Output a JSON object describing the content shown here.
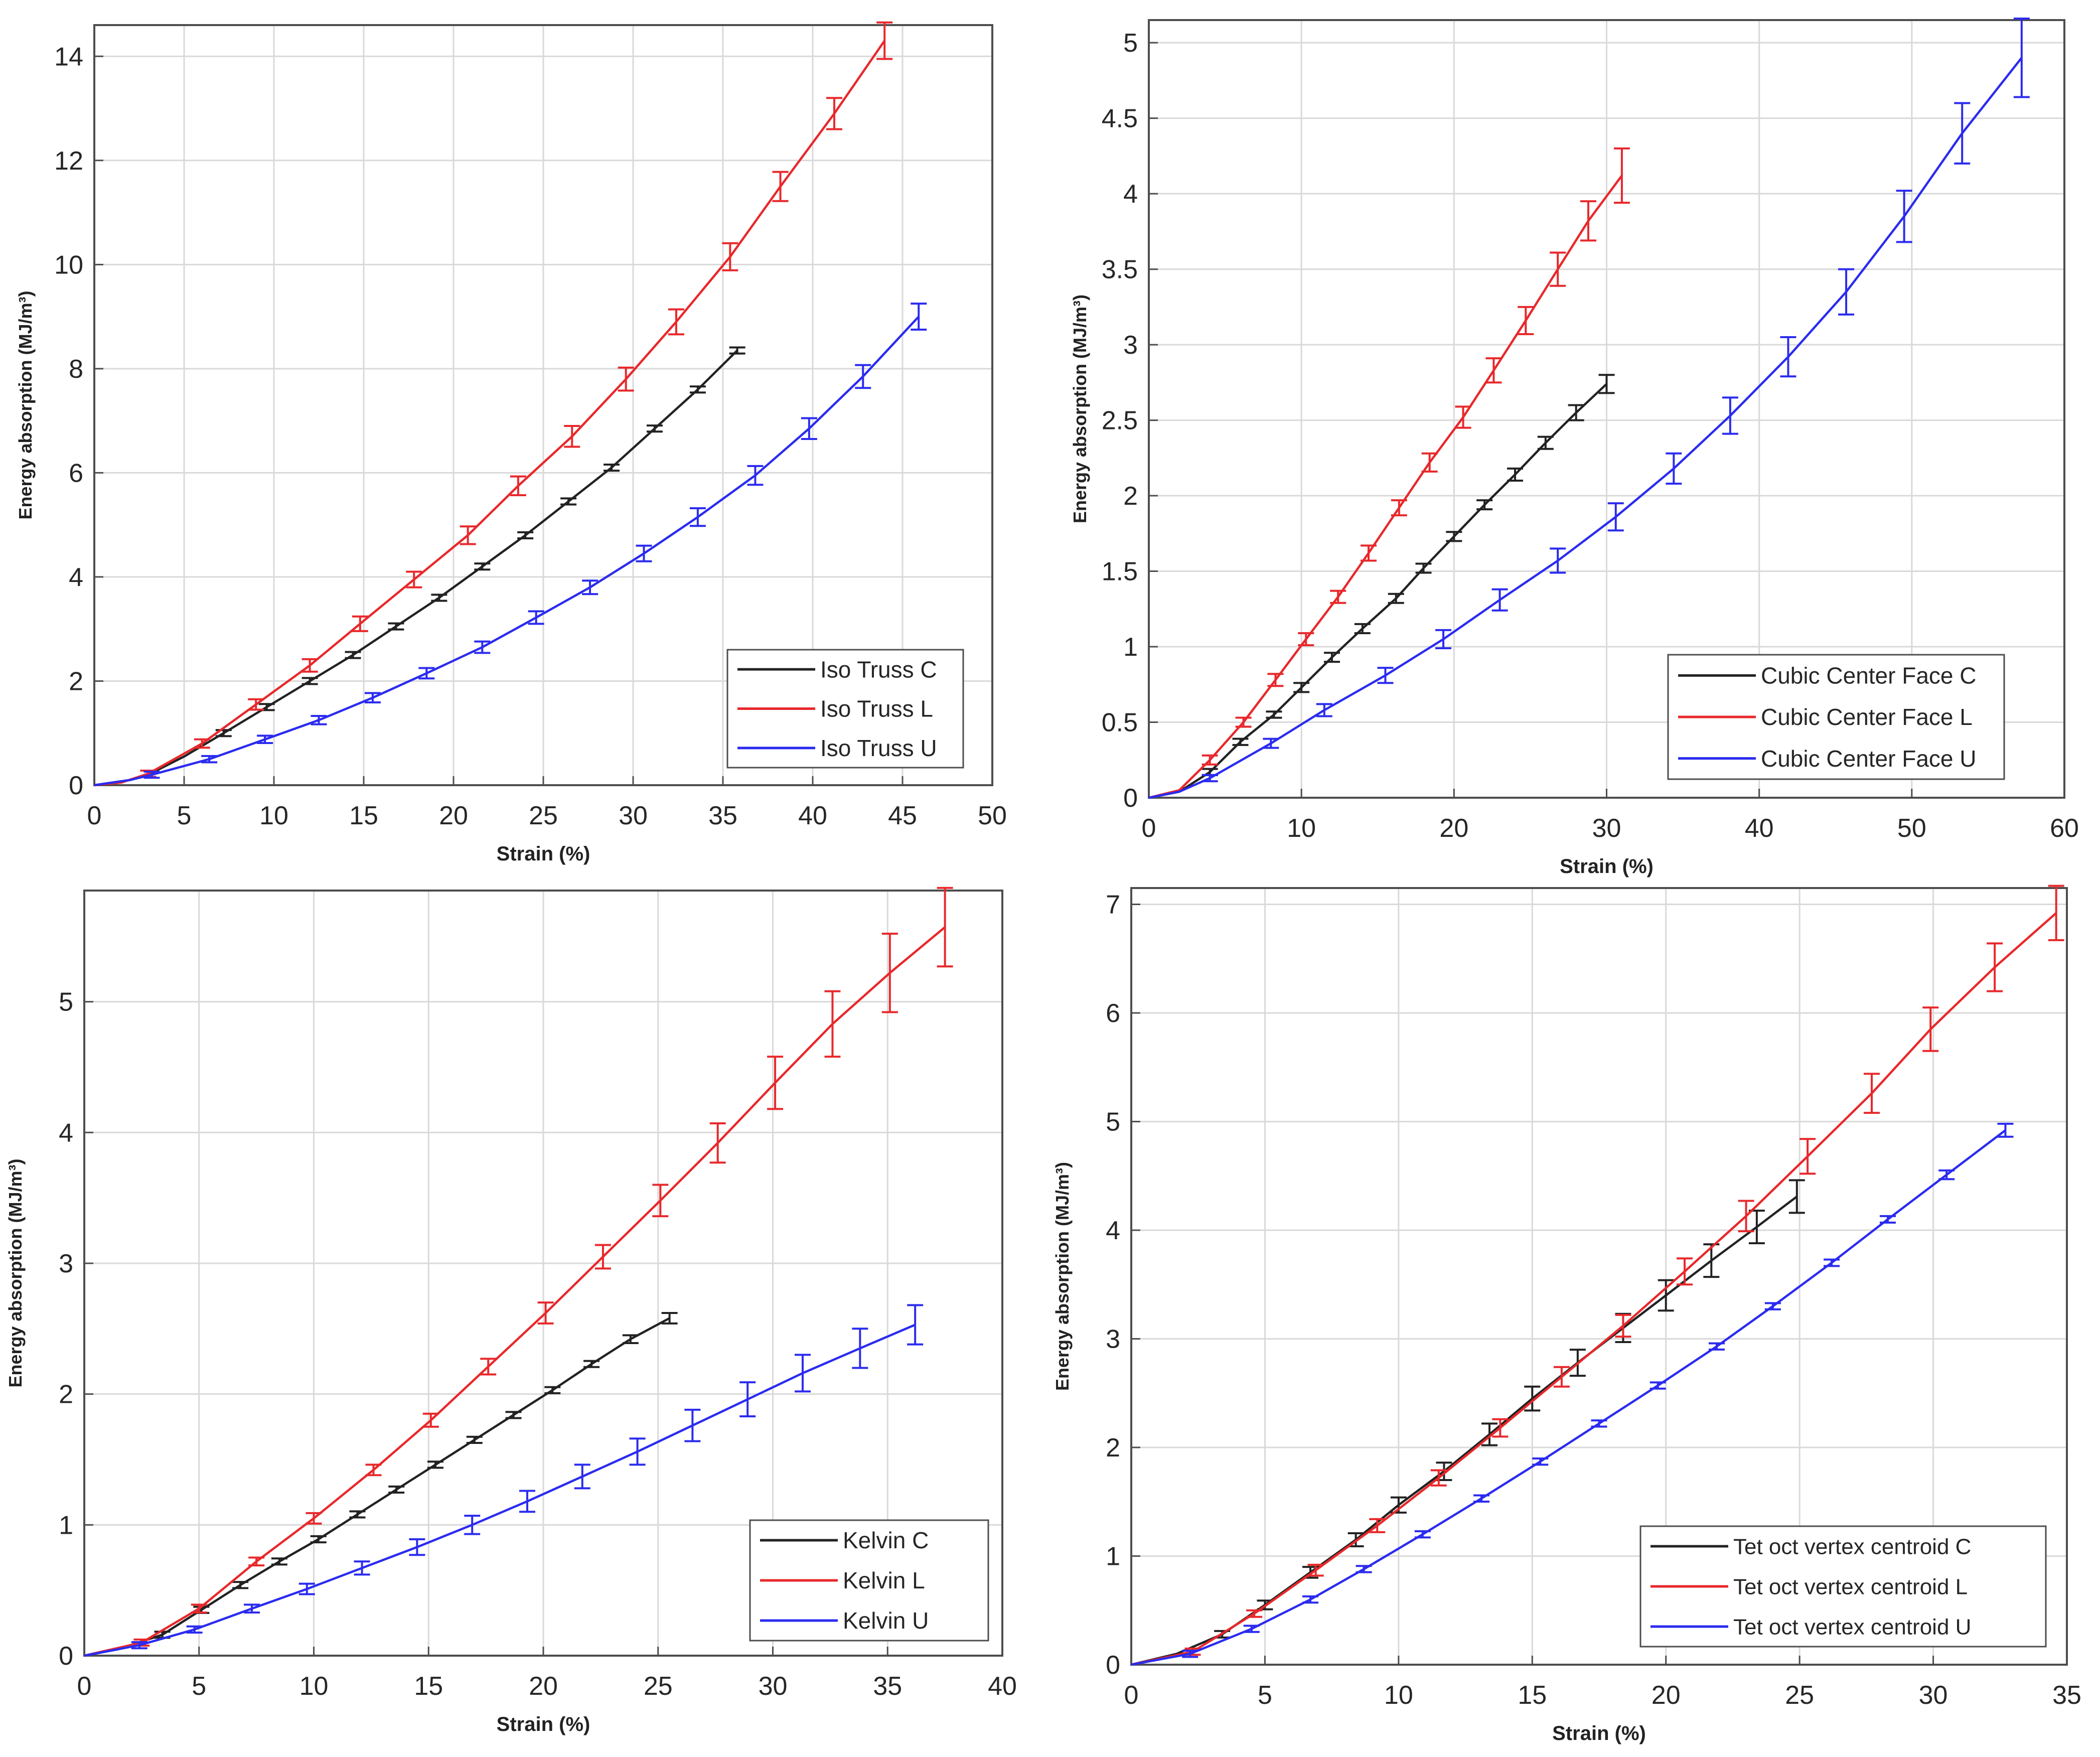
{
  "colors": {
    "C": "#222222",
    "L": "#e8282b",
    "U": "#2b2bf0",
    "grid": "#d9d9d9",
    "axis": "#4d4d4d"
  },
  "chart_data": [
    {
      "id": "iso-truss",
      "type": "line",
      "xlabel": "Strain (%)",
      "ylabel": "Energy absorption (MJ/m³)",
      "xlim": [
        0,
        50
      ],
      "ylim": [
        0,
        14.6
      ],
      "xticks": [
        0,
        5,
        10,
        15,
        20,
        25,
        30,
        35,
        40,
        45,
        50
      ],
      "yticks": [
        0,
        2,
        4,
        6,
        8,
        10,
        12,
        14
      ],
      "legend_position": "bottom-right",
      "series": [
        {
          "name": "Iso Truss C",
          "key": "C",
          "x": [
            0,
            2,
            3,
            5,
            7.2,
            9.6,
            12,
            14.4,
            16.8,
            19.2,
            21.6,
            24,
            26.4,
            28.8,
            31.2,
            33.6,
            35.8
          ],
          "y": [
            0,
            0.1,
            0.2,
            0.55,
            1,
            1.5,
            2,
            2.5,
            3.05,
            3.6,
            4.2,
            4.8,
            5.45,
            6.1,
            6.85,
            7.6,
            8.35
          ],
          "err": [
            0,
            0.03,
            0.04,
            0.05,
            0.05,
            0.05,
            0.05,
            0.05,
            0.05,
            0.05,
            0.05,
            0.05,
            0.05,
            0.05,
            0.05,
            0.05,
            0.05
          ],
          "marker_every": 1,
          "marker_start": 4
        },
        {
          "name": "Iso Truss L",
          "key": "L",
          "x": [
            0,
            1.5,
            3,
            6,
            9,
            12,
            14.8,
            17.8,
            20.8,
            23.6,
            26.6,
            29.6,
            32.4,
            35.4,
            38.2,
            41.2,
            44
          ],
          "y": [
            0,
            0.05,
            0.22,
            0.8,
            1.55,
            2.3,
            3.1,
            3.95,
            4.8,
            5.75,
            6.7,
            7.8,
            8.9,
            10.15,
            11.5,
            12.9,
            14.3
          ],
          "err": [
            0,
            0.05,
            0.06,
            0.08,
            0.1,
            0.12,
            0.14,
            0.15,
            0.17,
            0.18,
            0.2,
            0.22,
            0.24,
            0.26,
            0.28,
            0.3,
            0.35
          ],
          "marker_every": 1,
          "marker_start": 2
        },
        {
          "name": "Iso Truss U",
          "key": "U",
          "x": [
            0,
            2,
            3.2,
            6.4,
            9.5,
            12.5,
            15.5,
            18.5,
            21.6,
            24.6,
            27.6,
            30.6,
            33.6,
            36.8,
            39.8,
            42.8,
            45.9
          ],
          "y": [
            0,
            0.1,
            0.2,
            0.5,
            0.88,
            1.25,
            1.68,
            2.15,
            2.65,
            3.22,
            3.8,
            4.45,
            5.15,
            5.95,
            6.85,
            7.85,
            9
          ],
          "err": [
            0,
            0.03,
            0.04,
            0.06,
            0.07,
            0.08,
            0.09,
            0.1,
            0.11,
            0.12,
            0.13,
            0.15,
            0.17,
            0.18,
            0.2,
            0.22,
            0.25
          ],
          "marker_every": 1,
          "marker_start": 2
        }
      ]
    },
    {
      "id": "cubic-center-face",
      "type": "line",
      "xlabel": "Strain (%)",
      "ylabel": "Energy absorption (MJ/m³)",
      "xlim": [
        0,
        60
      ],
      "ylim": [
        0,
        5.15
      ],
      "xticks": [
        0,
        10,
        20,
        30,
        40,
        50,
        60
      ],
      "yticks": [
        0,
        0.5,
        1,
        1.5,
        2,
        2.5,
        3,
        3.5,
        4,
        4.5,
        5
      ],
      "legend_position": "bottom-right",
      "series": [
        {
          "name": "Cubic Center Face C",
          "key": "C",
          "x": [
            0,
            2,
            4,
            6,
            8.2,
            10,
            12,
            14,
            16.2,
            18,
            20,
            22,
            24,
            26,
            28,
            30
          ],
          "y": [
            0,
            0.04,
            0.17,
            0.37,
            0.55,
            0.73,
            0.93,
            1.12,
            1.32,
            1.52,
            1.73,
            1.94,
            2.14,
            2.35,
            2.55,
            2.74
          ],
          "err": [
            0,
            0.02,
            0.02,
            0.02,
            0.02,
            0.03,
            0.03,
            0.03,
            0.03,
            0.03,
            0.03,
            0.03,
            0.04,
            0.04,
            0.05,
            0.06
          ],
          "marker_every": 1,
          "marker_start": 2
        },
        {
          "name": "Cubic Center Face L",
          "key": "L",
          "x": [
            0,
            2,
            4,
            6.2,
            8.3,
            10.3,
            12.4,
            14.4,
            16.4,
            18.4,
            20.6,
            22.6,
            24.7,
            26.8,
            28.8,
            31
          ],
          "y": [
            0,
            0.05,
            0.25,
            0.5,
            0.78,
            1.05,
            1.33,
            1.62,
            1.92,
            2.22,
            2.52,
            2.83,
            3.16,
            3.5,
            3.82,
            4.12
          ],
          "err": [
            0,
            0.02,
            0.03,
            0.03,
            0.04,
            0.04,
            0.04,
            0.05,
            0.05,
            0.06,
            0.07,
            0.08,
            0.09,
            0.11,
            0.13,
            0.18
          ],
          "marker_every": 1,
          "marker_start": 2
        },
        {
          "name": "Cubic Center Face U",
          "key": "U",
          "x": [
            0,
            2,
            4,
            8,
            11.5,
            15.5,
            19.3,
            23,
            26.8,
            30.6,
            34.4,
            38.1,
            41.9,
            45.7,
            49.5,
            53.3,
            57.2
          ],
          "y": [
            0,
            0.04,
            0.13,
            0.36,
            0.58,
            0.81,
            1.05,
            1.31,
            1.57,
            1.86,
            2.18,
            2.53,
            2.92,
            3.35,
            3.85,
            4.4,
            4.9
          ],
          "err": [
            0,
            0.02,
            0.02,
            0.03,
            0.04,
            0.05,
            0.06,
            0.07,
            0.08,
            0.09,
            0.1,
            0.12,
            0.13,
            0.15,
            0.17,
            0.2,
            0.26
          ],
          "marker_every": 1,
          "marker_start": 2
        }
      ]
    },
    {
      "id": "kelvin",
      "type": "line",
      "xlabel": "Strain (%)",
      "ylabel": "Energy absorption (MJ/m³)",
      "xlim": [
        0,
        40
      ],
      "ylim": [
        0,
        5.85
      ],
      "xticks": [
        0,
        5,
        10,
        15,
        20,
        25,
        30,
        35,
        40
      ],
      "yticks": [
        0,
        1,
        2,
        3,
        4,
        5
      ],
      "legend_position": "bottom-right",
      "series": [
        {
          "name": "Kelvin C",
          "key": "C",
          "x": [
            0,
            1.5,
            3.4,
            5.1,
            6.8,
            8.5,
            10.2,
            11.9,
            13.6,
            15.3,
            17,
            18.7,
            20.4,
            22.1,
            23.8,
            25.5
          ],
          "y": [
            0,
            0.05,
            0.16,
            0.35,
            0.54,
            0.72,
            0.89,
            1.08,
            1.27,
            1.46,
            1.65,
            1.84,
            2.03,
            2.23,
            2.42,
            2.58
          ],
          "err": [
            0,
            0.01,
            0.01,
            0.02,
            0.02,
            0.02,
            0.02,
            0.02,
            0.02,
            0.02,
            0.02,
            0.02,
            0.02,
            0.02,
            0.03,
            0.04
          ],
          "marker_every": 1,
          "marker_start": 2
        },
        {
          "name": "Kelvin L",
          "key": "L",
          "x": [
            0,
            2.5,
            5,
            7.5,
            10,
            12.6,
            15.1,
            17.6,
            20.1,
            22.6,
            25.1,
            27.6,
            30.1,
            32.6,
            35.1,
            37.5
          ],
          "y": [
            0,
            0.1,
            0.36,
            0.72,
            1.05,
            1.42,
            1.8,
            2.21,
            2.62,
            3.05,
            3.48,
            3.92,
            4.38,
            4.83,
            5.22,
            5.57
          ],
          "err": [
            0,
            0.02,
            0.03,
            0.03,
            0.04,
            0.04,
            0.05,
            0.06,
            0.08,
            0.09,
            0.12,
            0.15,
            0.2,
            0.25,
            0.3,
            0.3
          ],
          "marker_every": 1,
          "marker_start": 1
        },
        {
          "name": "Kelvin U",
          "key": "U",
          "x": [
            0,
            2.4,
            4.8,
            7.3,
            9.7,
            12.1,
            14.5,
            16.9,
            19.3,
            21.7,
            24.1,
            26.5,
            28.9,
            31.3,
            33.8,
            36.2
          ],
          "y": [
            0,
            0.08,
            0.2,
            0.36,
            0.51,
            0.67,
            0.83,
            1.0,
            1.18,
            1.37,
            1.56,
            1.76,
            1.96,
            2.16,
            2.35,
            2.53
          ],
          "err": [
            0,
            0.01,
            0.02,
            0.03,
            0.04,
            0.05,
            0.06,
            0.07,
            0.08,
            0.09,
            0.1,
            0.12,
            0.13,
            0.14,
            0.15,
            0.15
          ],
          "marker_every": 1,
          "marker_start": 1
        }
      ]
    },
    {
      "id": "tet-oct",
      "type": "line",
      "xlabel": "Strain (%)",
      "ylabel": "Energy absorption (MJ/m³)",
      "xlim": [
        0,
        35
      ],
      "ylim": [
        0,
        7.15
      ],
      "xticks": [
        0,
        5,
        10,
        15,
        20,
        25,
        30,
        35
      ],
      "yticks": [
        0,
        1,
        2,
        3,
        4,
        5,
        6,
        7
      ],
      "legend_position": "bottom-right",
      "series": [
        {
          "name": "Tet oct vertex centroid C",
          "key": "C",
          "x": [
            0,
            1.7,
            3.4,
            5,
            6.7,
            8.4,
            10,
            11.7,
            13.4,
            15,
            16.7,
            18.4,
            20,
            21.7,
            23.4,
            24.9
          ],
          "y": [
            0,
            0.1,
            0.28,
            0.55,
            0.85,
            1.15,
            1.47,
            1.78,
            2.12,
            2.45,
            2.78,
            3.1,
            3.4,
            3.72,
            4.03,
            4.31
          ],
          "err": [
            0,
            0.02,
            0.03,
            0.04,
            0.05,
            0.06,
            0.07,
            0.08,
            0.1,
            0.11,
            0.12,
            0.13,
            0.14,
            0.15,
            0.15,
            0.15
          ],
          "marker_every": 1,
          "marker_start": 2
        },
        {
          "name": "Tet oct vertex centroid L",
          "key": "L",
          "x": [
            0,
            2.3,
            4.6,
            6.9,
            9.2,
            11.5,
            13.8,
            16.1,
            18.4,
            20.7,
            23,
            25.3,
            27.7,
            29.9,
            32.3,
            34.6
          ],
          "y": [
            0,
            0.12,
            0.47,
            0.87,
            1.28,
            1.72,
            2.18,
            2.65,
            3.12,
            3.62,
            4.13,
            4.68,
            5.26,
            5.85,
            6.42,
            6.92
          ],
          "err": [
            0,
            0.02,
            0.03,
            0.05,
            0.06,
            0.07,
            0.08,
            0.09,
            0.1,
            0.12,
            0.14,
            0.16,
            0.18,
            0.2,
            0.22,
            0.25
          ],
          "marker_every": 1,
          "marker_start": 1
        },
        {
          "name": "Tet oct vertex centroid U",
          "key": "U",
          "x": [
            0,
            2.2,
            4.5,
            6.7,
            8.7,
            10.9,
            13.1,
            15.3,
            17.5,
            19.7,
            21.9,
            24,
            26.2,
            28.3,
            30.5,
            32.7
          ],
          "y": [
            0,
            0.1,
            0.33,
            0.6,
            0.88,
            1.2,
            1.53,
            1.87,
            2.22,
            2.57,
            2.93,
            3.3,
            3.7,
            4.1,
            4.51,
            4.92
          ],
          "err": [
            0,
            0.01,
            0.02,
            0.02,
            0.02,
            0.02,
            0.02,
            0.02,
            0.02,
            0.02,
            0.02,
            0.02,
            0.03,
            0.03,
            0.04,
            0.06
          ],
          "marker_every": 1,
          "marker_start": 1
        }
      ]
    }
  ]
}
